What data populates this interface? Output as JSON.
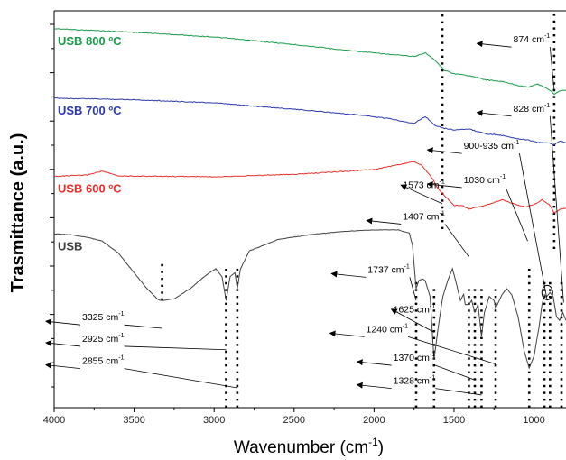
{
  "chart_data": {
    "type": "line",
    "title": "",
    "xlabel": "Wavenumber (cm",
    "xlabel_sup": "-1",
    "xlabel_close": ")",
    "ylabel": "Trasmittance (a.u.)",
    "xlim": [
      4000,
      800
    ],
    "x_reversed": true,
    "x_ticks": [
      "4000",
      "3500",
      "3000",
      "2500",
      "2000",
      "1500",
      "1000"
    ],
    "grid": false,
    "series": [
      {
        "name": "USB 800 ºC",
        "color": "#1a9a4a",
        "points": [
          [
            4000,
            0.955
          ],
          [
            3500,
            0.946
          ],
          [
            3000,
            0.934
          ],
          [
            2500,
            0.915
          ],
          [
            2200,
            0.902
          ],
          [
            1900,
            0.89
          ],
          [
            1750,
            0.885
          ],
          [
            1680,
            0.894
          ],
          [
            1620,
            0.876
          ],
          [
            1560,
            0.85
          ],
          [
            1500,
            0.842
          ],
          [
            1400,
            0.836
          ],
          [
            1300,
            0.826
          ],
          [
            1200,
            0.822
          ],
          [
            1100,
            0.812
          ],
          [
            1030,
            0.808
          ],
          [
            980,
            0.816
          ],
          [
            940,
            0.808
          ],
          [
            900,
            0.8
          ],
          [
            874,
            0.79
          ],
          [
            840,
            0.798
          ],
          [
            800,
            0.8
          ]
        ]
      },
      {
        "name": "USB 700 ºC",
        "color": "#2b3aa8",
        "points": [
          [
            4000,
            0.78
          ],
          [
            3500,
            0.776
          ],
          [
            3000,
            0.768
          ],
          [
            2500,
            0.752
          ],
          [
            2100,
            0.738
          ],
          [
            1900,
            0.728
          ],
          [
            1750,
            0.716
          ],
          [
            1680,
            0.734
          ],
          [
            1620,
            0.712
          ],
          [
            1560,
            0.704
          ],
          [
            1500,
            0.7
          ],
          [
            1407,
            0.702
          ],
          [
            1300,
            0.69
          ],
          [
            1200,
            0.686
          ],
          [
            1100,
            0.678
          ],
          [
            1030,
            0.674
          ],
          [
            980,
            0.668
          ],
          [
            920,
            0.668
          ],
          [
            874,
            0.662
          ],
          [
            840,
            0.672
          ],
          [
            800,
            0.668
          ]
        ]
      },
      {
        "name": "USB 600 ºC",
        "color": "#e8302c",
        "points": [
          [
            4000,
            0.583
          ],
          [
            3800,
            0.586
          ],
          [
            3700,
            0.596
          ],
          [
            3600,
            0.584
          ],
          [
            3000,
            0.582
          ],
          [
            2500,
            0.588
          ],
          [
            2000,
            0.6
          ],
          [
            1850,
            0.612
          ],
          [
            1750,
            0.62
          ],
          [
            1700,
            0.61
          ],
          [
            1640,
            0.58
          ],
          [
            1600,
            0.552
          ],
          [
            1573,
            0.54
          ],
          [
            1500,
            0.51
          ],
          [
            1450,
            0.51
          ],
          [
            1407,
            0.5
          ],
          [
            1350,
            0.506
          ],
          [
            1300,
            0.51
          ],
          [
            1200,
            0.524
          ],
          [
            1100,
            0.51
          ],
          [
            1050,
            0.506
          ],
          [
            1000,
            0.512
          ],
          [
            950,
            0.524
          ],
          [
            900,
            0.51
          ],
          [
            874,
            0.49
          ],
          [
            840,
            0.5
          ],
          [
            800,
            0.502
          ]
        ]
      },
      {
        "name": "USB",
        "color": "#404040",
        "points": [
          [
            4000,
            0.438
          ],
          [
            3900,
            0.436
          ],
          [
            3800,
            0.43
          ],
          [
            3700,
            0.42
          ],
          [
            3600,
            0.39
          ],
          [
            3500,
            0.34
          ],
          [
            3420,
            0.3
          ],
          [
            3350,
            0.272
          ],
          [
            3325,
            0.27
          ],
          [
            3250,
            0.274
          ],
          [
            3150,
            0.3
          ],
          [
            3050,
            0.334
          ],
          [
            2990,
            0.35
          ],
          [
            2950,
            0.33
          ],
          [
            2925,
            0.27
          ],
          [
            2900,
            0.33
          ],
          [
            2870,
            0.34
          ],
          [
            2855,
            0.3
          ],
          [
            2835,
            0.35
          ],
          [
            2780,
            0.395
          ],
          [
            2600,
            0.424
          ],
          [
            2400,
            0.436
          ],
          [
            2200,
            0.444
          ],
          [
            2000,
            0.448
          ],
          [
            1850,
            0.448
          ],
          [
            1780,
            0.44
          ],
          [
            1760,
            0.41
          ],
          [
            1737,
            0.3
          ],
          [
            1720,
            0.32
          ],
          [
            1700,
            0.325
          ],
          [
            1680,
            0.32
          ],
          [
            1650,
            0.28
          ],
          [
            1625,
            0.122
          ],
          [
            1600,
            0.2
          ],
          [
            1570,
            0.28
          ],
          [
            1540,
            0.32
          ],
          [
            1510,
            0.35
          ],
          [
            1490,
            0.32
          ],
          [
            1460,
            0.27
          ],
          [
            1440,
            0.286
          ],
          [
            1430,
            0.26
          ],
          [
            1407,
            0.26
          ],
          [
            1390,
            0.27
          ],
          [
            1370,
            0.24
          ],
          [
            1350,
            0.26
          ],
          [
            1328,
            0.18
          ],
          [
            1310,
            0.24
          ],
          [
            1280,
            0.28
          ],
          [
            1250,
            0.27
          ],
          [
            1240,
            0.25
          ],
          [
            1200,
            0.285
          ],
          [
            1170,
            0.3
          ],
          [
            1140,
            0.285
          ],
          [
            1100,
            0.23
          ],
          [
            1060,
            0.14
          ],
          [
            1030,
            0.1
          ],
          [
            1000,
            0.13
          ],
          [
            970,
            0.2
          ],
          [
            950,
            0.26
          ],
          [
            935,
            0.285
          ],
          [
            920,
            0.28
          ],
          [
            900,
            0.29
          ],
          [
            880,
            0.28
          ],
          [
            860,
            0.23
          ],
          [
            840,
            0.22
          ],
          [
            820,
            0.24
          ],
          [
            800,
            0.22
          ]
        ]
      }
    ],
    "guide_lines": [
      {
        "x": 3325,
        "from": 0.27,
        "to": 0.37
      },
      {
        "x": 2925,
        "from": 0.0,
        "to": 0.35
      },
      {
        "x": 2855,
        "from": 0.0,
        "to": 0.35
      },
      {
        "x": 1737,
        "from": 0.0,
        "to": 0.32
      },
      {
        "x": 1625,
        "from": 0.0,
        "to": 0.3
      },
      {
        "x": 1573,
        "from": 0.45,
        "to": 1.0
      },
      {
        "x": 1407,
        "from": 0.0,
        "to": 0.31
      },
      {
        "x": 1370,
        "from": 0.0,
        "to": 0.3
      },
      {
        "x": 1328,
        "from": 0.0,
        "to": 0.3
      },
      {
        "x": 1240,
        "from": 0.0,
        "to": 0.3
      },
      {
        "x": 1030,
        "from": 0.0,
        "to": 0.35
      },
      {
        "x": 935,
        "from": 0.0,
        "to": 0.32
      },
      {
        "x": 900,
        "from": 0.0,
        "to": 0.32
      },
      {
        "x": 874,
        "from": 0.4,
        "to": 1.0
      },
      {
        "x": 828,
        "from": 0.0,
        "to": 0.32
      }
    ],
    "annotations": [
      {
        "label": "3325 cm",
        "sup": "-1",
        "label_x": 3825,
        "label_y": 0.22,
        "target": [
          3325,
          0.2
        ]
      },
      {
        "label": "2925 cm",
        "sup": "-1",
        "label_x": 3825,
        "label_y": 0.166,
        "target": [
          2925,
          0.146
        ]
      },
      {
        "label": "2855 cm",
        "sup": "-1",
        "label_x": 3825,
        "label_y": 0.11,
        "target": [
          2855,
          0.05
        ]
      },
      {
        "label": "1737 cm",
        "sup": "-1",
        "label_x": 2040,
        "label_y": 0.34,
        "target": [
          1737,
          0.27
        ]
      },
      {
        "label": "1625 cm",
        "sup": "-1",
        "label_x": 1880,
        "label_y": 0.24,
        "target": [
          1625,
          0.19
        ]
      },
      {
        "label": "1240 cm",
        "sup": "-1",
        "label_x": 2050,
        "label_y": 0.19,
        "target": [
          1240,
          0.11
        ]
      },
      {
        "label": "1370 cm",
        "sup": "-1",
        "label_x": 1880,
        "label_y": 0.118,
        "target": [
          1370,
          0.07
        ]
      },
      {
        "label": "1328 cm",
        "sup": "-1",
        "label_x": 1880,
        "label_y": 0.06,
        "target": [
          1328,
          0.032
        ]
      },
      {
        "label": "1573 cm",
        "sup": "-1",
        "label_x": 1820,
        "label_y": 0.553,
        "target": [
          1573,
          0.514
        ]
      },
      {
        "label": "1407 cm",
        "sup": "-1",
        "label_x": 1820,
        "label_y": 0.474,
        "target": [
          1407,
          0.38
        ]
      },
      {
        "label": "1030 cm",
        "sup": "-1",
        "label_x": 1440,
        "label_y": 0.566,
        "target": [
          1040,
          0.42
        ]
      },
      {
        "label": "900-935 cm",
        "sup": "-1",
        "label_x": 1440,
        "label_y": 0.652,
        "target": [
          917,
          0.27
        ]
      },
      {
        "label": "828 cm",
        "sup": "-1",
        "label_x": 1130,
        "label_y": 0.746,
        "target": [
          815,
          0.265
        ]
      },
      {
        "label": "874 cm",
        "sup": "-1",
        "label_x": 1130,
        "label_y": 0.92,
        "target": [
          874,
          0.8
        ]
      }
    ]
  }
}
